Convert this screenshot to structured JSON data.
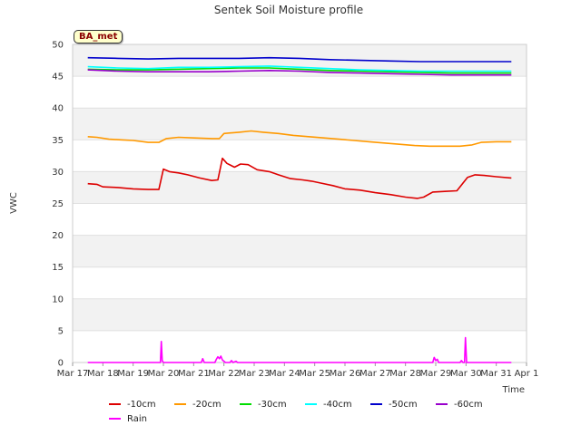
{
  "chart_data": {
    "type": "line",
    "title": "Sentek Soil Moisture profile",
    "xlabel": "Time",
    "ylabel": "VWC",
    "site_label": "BA_met",
    "ylim": [
      0,
      50
    ],
    "yticks": [
      0,
      5,
      10,
      15,
      20,
      25,
      30,
      35,
      40,
      45,
      50
    ],
    "xlim": [
      0,
      15
    ],
    "xticks": [
      {
        "v": 0,
        "label": "Mar 17"
      },
      {
        "v": 1,
        "label": "Mar 18"
      },
      {
        "v": 2,
        "label": "Mar 19"
      },
      {
        "v": 3,
        "label": "Mar 20"
      },
      {
        "v": 4,
        "label": "Mar 21"
      },
      {
        "v": 5,
        "label": "Mar 22"
      },
      {
        "v": 6,
        "label": "Mar 23"
      },
      {
        "v": 7,
        "label": "Mar 24"
      },
      {
        "v": 8,
        "label": "Mar 25"
      },
      {
        "v": 9,
        "label": "Mar 26"
      },
      {
        "v": 10,
        "label": "Mar 27"
      },
      {
        "v": 11,
        "label": "Mar 28"
      },
      {
        "v": 12,
        "label": "Mar 29"
      },
      {
        "v": 13,
        "label": "Mar 30"
      },
      {
        "v": 14,
        "label": "Mar 31"
      },
      {
        "v": 15,
        "label": "Apr 1"
      }
    ],
    "grid": "horizontal bands",
    "legend_position": "bottom",
    "series": [
      {
        "name": "-10cm",
        "color": "#dd0000",
        "points": [
          [
            0.5,
            28.1
          ],
          [
            0.8,
            28.0
          ],
          [
            1.0,
            27.6
          ],
          [
            1.5,
            27.5
          ],
          [
            2.0,
            27.3
          ],
          [
            2.5,
            27.2
          ],
          [
            2.85,
            27.2
          ],
          [
            3.0,
            30.4
          ],
          [
            3.2,
            30.0
          ],
          [
            3.5,
            29.8
          ],
          [
            3.8,
            29.5
          ],
          [
            4.2,
            29.0
          ],
          [
            4.6,
            28.6
          ],
          [
            4.8,
            28.7
          ],
          [
            4.95,
            32.1
          ],
          [
            5.1,
            31.3
          ],
          [
            5.35,
            30.7
          ],
          [
            5.55,
            31.2
          ],
          [
            5.8,
            31.1
          ],
          [
            6.1,
            30.3
          ],
          [
            6.5,
            30.0
          ],
          [
            6.8,
            29.5
          ],
          [
            7.2,
            28.9
          ],
          [
            7.6,
            28.7
          ],
          [
            7.9,
            28.5
          ],
          [
            8.2,
            28.2
          ],
          [
            8.6,
            27.8
          ],
          [
            9.0,
            27.3
          ],
          [
            9.5,
            27.1
          ],
          [
            10.0,
            26.7
          ],
          [
            10.5,
            26.4
          ],
          [
            11.0,
            26.0
          ],
          [
            11.4,
            25.8
          ],
          [
            11.6,
            26.0
          ],
          [
            11.9,
            26.8
          ],
          [
            12.3,
            26.9
          ],
          [
            12.7,
            27.0
          ],
          [
            13.05,
            29.1
          ],
          [
            13.3,
            29.5
          ],
          [
            13.6,
            29.4
          ],
          [
            14.0,
            29.2
          ],
          [
            14.5,
            29.0
          ]
        ]
      },
      {
        "name": "-20cm",
        "color": "#ff9900",
        "points": [
          [
            0.5,
            35.5
          ],
          [
            0.8,
            35.4
          ],
          [
            1.2,
            35.1
          ],
          [
            1.6,
            35.0
          ],
          [
            2.0,
            34.9
          ],
          [
            2.5,
            34.6
          ],
          [
            2.85,
            34.6
          ],
          [
            3.1,
            35.2
          ],
          [
            3.5,
            35.4
          ],
          [
            4.0,
            35.3
          ],
          [
            4.6,
            35.2
          ],
          [
            4.85,
            35.2
          ],
          [
            5.0,
            36.0
          ],
          [
            5.5,
            36.2
          ],
          [
            5.9,
            36.4
          ],
          [
            6.3,
            36.2
          ],
          [
            6.8,
            36.0
          ],
          [
            7.3,
            35.7
          ],
          [
            7.8,
            35.5
          ],
          [
            8.3,
            35.3
          ],
          [
            8.8,
            35.1
          ],
          [
            9.3,
            34.9
          ],
          [
            9.8,
            34.7
          ],
          [
            10.3,
            34.5
          ],
          [
            10.8,
            34.3
          ],
          [
            11.3,
            34.1
          ],
          [
            11.8,
            34.0
          ],
          [
            12.3,
            34.0
          ],
          [
            12.8,
            34.0
          ],
          [
            13.2,
            34.2
          ],
          [
            13.5,
            34.6
          ],
          [
            14.0,
            34.7
          ],
          [
            14.5,
            34.7
          ]
        ]
      },
      {
        "name": "-30cm",
        "color": "#00dd00",
        "points": [
          [
            0.5,
            46.1
          ],
          [
            1.5,
            46.0
          ],
          [
            2.5,
            46.0
          ],
          [
            3.5,
            46.1
          ],
          [
            4.5,
            46.2
          ],
          [
            5.5,
            46.3
          ],
          [
            6.5,
            46.3
          ],
          [
            7.5,
            46.1
          ],
          [
            8.5,
            45.9
          ],
          [
            9.5,
            45.8
          ],
          [
            10.5,
            45.7
          ],
          [
            11.5,
            45.6
          ],
          [
            12.5,
            45.5
          ],
          [
            13.5,
            45.5
          ],
          [
            14.5,
            45.5
          ]
        ]
      },
      {
        "name": "-40cm",
        "color": "#00ffff",
        "points": [
          [
            0.5,
            46.5
          ],
          [
            1.5,
            46.3
          ],
          [
            2.5,
            46.2
          ],
          [
            3.5,
            46.4
          ],
          [
            4.5,
            46.4
          ],
          [
            5.5,
            46.5
          ],
          [
            6.5,
            46.6
          ],
          [
            7.5,
            46.4
          ],
          [
            8.5,
            46.2
          ],
          [
            9.5,
            46.0
          ],
          [
            10.5,
            45.9
          ],
          [
            11.5,
            45.8
          ],
          [
            12.5,
            45.8
          ],
          [
            13.5,
            45.8
          ],
          [
            14.5,
            45.8
          ]
        ]
      },
      {
        "name": "-50cm",
        "color": "#0000cc",
        "points": [
          [
            0.5,
            47.9
          ],
          [
            1.5,
            47.8
          ],
          [
            2.5,
            47.7
          ],
          [
            3.5,
            47.8
          ],
          [
            4.5,
            47.8
          ],
          [
            5.5,
            47.8
          ],
          [
            6.5,
            47.9
          ],
          [
            7.5,
            47.8
          ],
          [
            8.5,
            47.6
          ],
          [
            9.5,
            47.5
          ],
          [
            10.5,
            47.4
          ],
          [
            11.5,
            47.3
          ],
          [
            12.5,
            47.3
          ],
          [
            13.5,
            47.3
          ],
          [
            14.5,
            47.3
          ]
        ]
      },
      {
        "name": "-60cm",
        "color": "#9900cc",
        "points": [
          [
            0.5,
            46.0
          ],
          [
            1.5,
            45.8
          ],
          [
            2.5,
            45.7
          ],
          [
            3.5,
            45.7
          ],
          [
            4.5,
            45.7
          ],
          [
            5.5,
            45.8
          ],
          [
            6.5,
            45.9
          ],
          [
            7.5,
            45.8
          ],
          [
            8.5,
            45.6
          ],
          [
            9.5,
            45.5
          ],
          [
            10.5,
            45.4
          ],
          [
            11.5,
            45.3
          ],
          [
            12.5,
            45.2
          ],
          [
            13.5,
            45.2
          ],
          [
            14.5,
            45.2
          ]
        ]
      },
      {
        "name": "Rain",
        "color": "#ff00ff",
        "points": [
          [
            0.5,
            0
          ],
          [
            2.85,
            0
          ],
          [
            2.9,
            0
          ],
          [
            2.93,
            3.3
          ],
          [
            2.96,
            0.3
          ],
          [
            3.0,
            0
          ],
          [
            4.25,
            0
          ],
          [
            4.3,
            0.6
          ],
          [
            4.35,
            0
          ],
          [
            4.7,
            0
          ],
          [
            4.75,
            0.5
          ],
          [
            4.8,
            0.9
          ],
          [
            4.85,
            0.6
          ],
          [
            4.9,
            1.0
          ],
          [
            4.95,
            0.4
          ],
          [
            5.0,
            0.2
          ],
          [
            5.05,
            0
          ],
          [
            5.2,
            0
          ],
          [
            5.25,
            0.3
          ],
          [
            5.3,
            0
          ],
          [
            5.4,
            0.2
          ],
          [
            5.45,
            0
          ],
          [
            11.9,
            0
          ],
          [
            11.95,
            0.8
          ],
          [
            12.0,
            0.3
          ],
          [
            12.05,
            0.5
          ],
          [
            12.1,
            0
          ],
          [
            12.8,
            0
          ],
          [
            12.85,
            0.3
          ],
          [
            12.9,
            0
          ],
          [
            12.95,
            0
          ],
          [
            12.98,
            3.9
          ],
          [
            13.02,
            0
          ],
          [
            14.5,
            0
          ]
        ]
      }
    ]
  }
}
